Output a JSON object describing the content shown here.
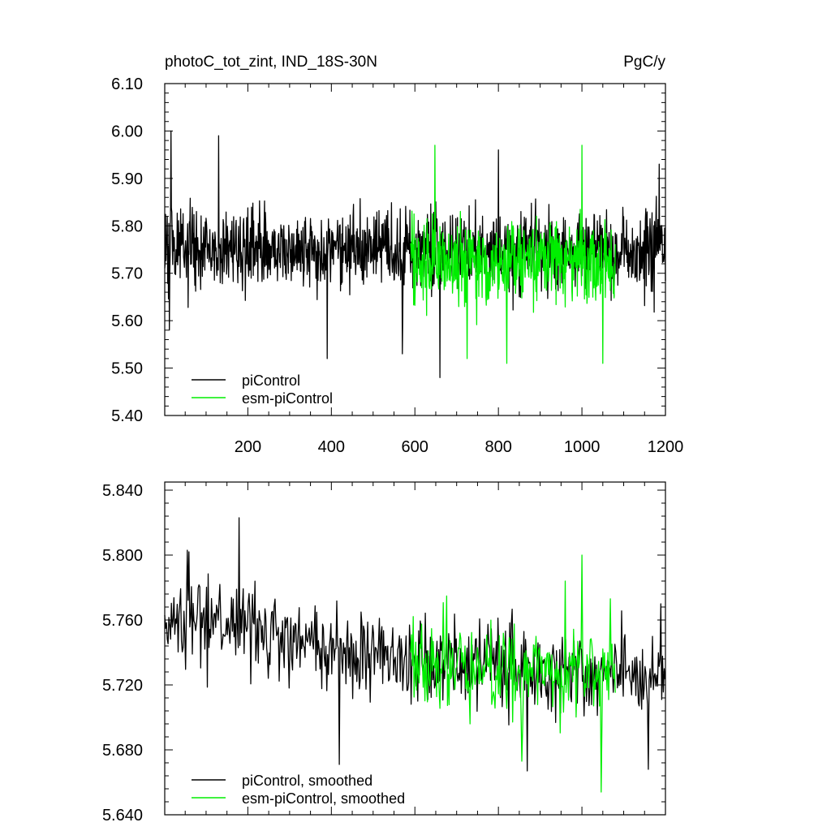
{
  "colors": {
    "piControl": "#000000",
    "esm_piControl": "#00ee00"
  },
  "chart_data": [
    {
      "type": "line",
      "title_left": "photoC_tot_zint, IND_18S-30N",
      "title_right": "PgC/y",
      "xlim": [
        1,
        1200
      ],
      "ylim": [
        5.4,
        6.1
      ],
      "xticks": [
        200,
        400,
        600,
        800,
        1000,
        1200
      ],
      "xtick_labels": [
        "200",
        "400",
        "600",
        "800",
        "1000",
        "1200"
      ],
      "yticks": [
        5.4,
        5.5,
        5.6,
        5.7,
        5.8,
        5.9,
        6.0,
        6.1
      ],
      "ytick_labels": [
        "5.40",
        "5.50",
        "5.60",
        "5.70",
        "5.80",
        "5.90",
        "6.00",
        "6.10"
      ],
      "legend_position": "bottom-left",
      "series": [
        {
          "name": "piControl",
          "color": "#000000",
          "x_start": 1,
          "x_end": 1200,
          "step": 1,
          "mean": 5.75,
          "noise": 0.052,
          "extremes": [
            [
              16,
              6.0
            ],
            [
              130,
              5.99
            ],
            [
              390,
              5.52
            ],
            [
              660,
              5.48
            ],
            [
              800,
              5.96
            ],
            [
              1185,
              5.93
            ],
            [
              12,
              5.58
            ],
            [
              570,
              5.53
            ]
          ],
          "values_note_omitted": true
        },
        {
          "name": "esm-piControl",
          "color": "#00ee00",
          "x_start": 590,
          "x_end": 1080,
          "step": 1,
          "mean": 5.725,
          "noise": 0.055,
          "extremes": [
            [
              648,
              5.97
            ],
            [
              1000,
              5.97
            ],
            [
              820,
              5.51
            ],
            [
              1050,
              5.51
            ],
            [
              725,
              5.52
            ]
          ]
        }
      ]
    },
    {
      "type": "line",
      "xlim": [
        1,
        1200
      ],
      "ylim": [
        5.64,
        5.845
      ],
      "xticks": [
        200,
        400,
        600,
        800,
        1000,
        1200
      ],
      "xtick_labels": [],
      "yticks": [
        5.64,
        5.68,
        5.72,
        5.76,
        5.8,
        5.84
      ],
      "ytick_labels": [
        "5.640",
        "5.680",
        "5.720",
        "5.760",
        "5.800",
        "5.840"
      ],
      "legend_position": "bottom-left",
      "series": [
        {
          "name": "piControl, smoothed",
          "color": "#000000",
          "x_start": 1,
          "x_end": 1200,
          "step": 2,
          "trend": [
            [
              1,
              5.758
            ],
            [
              150,
              5.758
            ],
            [
              300,
              5.748
            ],
            [
              400,
              5.738
            ],
            [
              500,
              5.74
            ],
            [
              600,
              5.735
            ],
            [
              800,
              5.73
            ],
            [
              1000,
              5.725
            ],
            [
              1200,
              5.728
            ]
          ],
          "noise": 0.016,
          "extremes": [
            [
              180,
              5.823
            ],
            [
              60,
              5.802
            ],
            [
              420,
              5.671
            ],
            [
              870,
              5.667
            ],
            [
              1160,
              5.668
            ],
            [
              1190,
              5.77
            ]
          ]
        },
        {
          "name": "esm-piControl, smoothed",
          "color": "#00ee00",
          "x_start": 590,
          "x_end": 1080,
          "step": 2,
          "trend": [
            [
              590,
              5.735
            ],
            [
              800,
              5.73
            ],
            [
              1080,
              5.728
            ]
          ],
          "noise": 0.018,
          "extremes": [
            [
              1000,
              5.8
            ],
            [
              1045,
              5.654
            ],
            [
              855,
              5.673
            ],
            [
              960,
              5.784
            ]
          ]
        }
      ]
    }
  ]
}
